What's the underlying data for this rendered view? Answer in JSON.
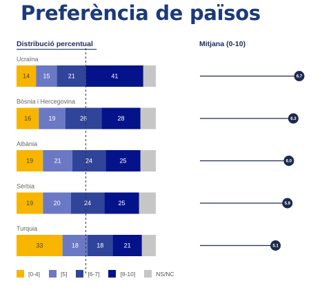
{
  "title": "Preferència de països",
  "left_header": "Distribució percentual",
  "right_header": "Mitjana (0-10)",
  "colors": {
    "c04": "#f7b500",
    "c5": "#6b78c4",
    "c67": "#30449a",
    "c810": "#05138a",
    "nsnc": "#c6c6c6",
    "dot": "#1c2a4f"
  },
  "chart_data": {
    "type": "bar",
    "stacked": true,
    "orientation": "horizontal",
    "categories": [
      "Ucraïna",
      "Bòsnia i Hercegovina",
      "Albània",
      "Sèrbia",
      "Turquia"
    ],
    "series": [
      {
        "name": "[0-4]",
        "values": [
          14,
          16,
          19,
          19,
          33
        ]
      },
      {
        "name": "[5]",
        "values": [
          15,
          19,
          21,
          20,
          18
        ]
      },
      {
        "name": "[6-7]",
        "values": [
          21,
          26,
          24,
          24,
          18
        ]
      },
      {
        "name": "[8-10]",
        "values": [
          41,
          28,
          25,
          25,
          21
        ]
      },
      {
        "name": "NS/NC",
        "values": [
          9,
          11,
          11,
          12,
          10
        ]
      }
    ],
    "means": [
      6.7,
      6.3,
      6.0,
      5.9,
      5.1
    ],
    "means_labels": [
      "6.7",
      "6.3",
      "6.0",
      "5.9",
      "5.1"
    ],
    "xlim": [
      0,
      100
    ],
    "legend_position": "bottom"
  }
}
